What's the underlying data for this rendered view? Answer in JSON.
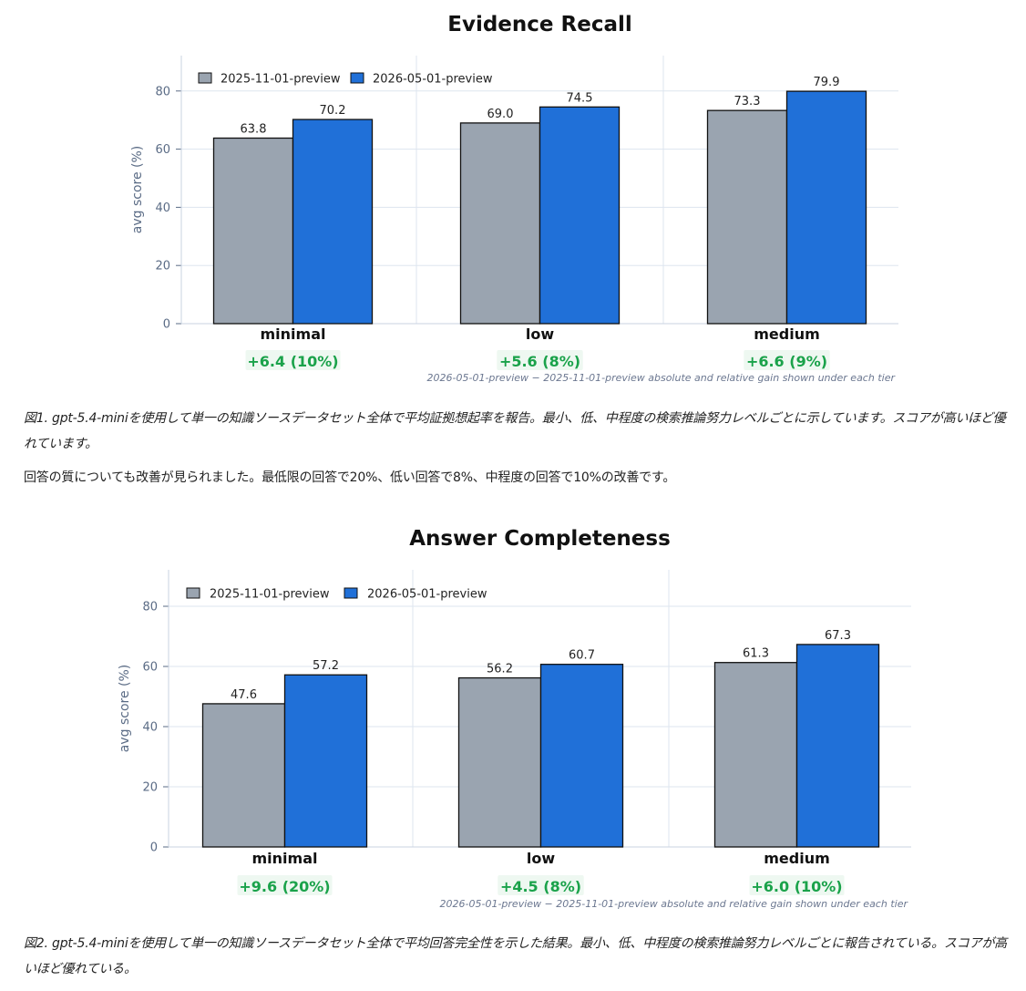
{
  "colors": {
    "baseline": "#9aa4b0",
    "improved": "#2070d8",
    "gain": "#1aa24a",
    "gain_bg": "#eef8f1",
    "axis": "#5a6b85",
    "grid": "#dde5ef"
  },
  "chart_data": [
    {
      "type": "bar",
      "title": "Evidence Recall",
      "ylabel": "avg score (%)",
      "xlabel": "",
      "categories": [
        "minimal",
        "low",
        "medium"
      ],
      "series": [
        {
          "name": "2025-11-01-preview",
          "values": [
            63.8,
            69.0,
            73.3
          ]
        },
        {
          "name": "2026-05-01-preview",
          "values": [
            70.2,
            74.5,
            79.9
          ]
        }
      ],
      "value_labels": [
        [
          "63.8",
          "69.0",
          "73.3"
        ],
        [
          "70.2",
          "74.5",
          "79.9"
        ]
      ],
      "gains": [
        "+6.4 (10%)",
        "+5.6 (8%)",
        "+6.6 (9%)"
      ],
      "yticks": [
        0,
        20,
        40,
        60,
        80
      ],
      "ylim": [
        0,
        92
      ],
      "grid": true,
      "legend": "top-left",
      "note": "2026-05-01-preview − 2025-11-01-preview absolute and relative gain shown under each tier"
    },
    {
      "type": "bar",
      "title": "Answer Completeness",
      "ylabel": "avg score (%)",
      "xlabel": "",
      "categories": [
        "minimal",
        "low",
        "medium"
      ],
      "series": [
        {
          "name": "2025-11-01-preview",
          "values": [
            47.6,
            56.2,
            61.3
          ]
        },
        {
          "name": "2026-05-01-preview",
          "values": [
            57.2,
            60.7,
            67.3
          ]
        }
      ],
      "value_labels": [
        [
          "47.6",
          "56.2",
          "61.3"
        ],
        [
          "57.2",
          "60.7",
          "67.3"
        ]
      ],
      "gains": [
        "+9.6 (20%)",
        "+4.5 (8%)",
        "+6.0 (10%)"
      ],
      "yticks": [
        0,
        20,
        40,
        60,
        80
      ],
      "ylim": [
        0,
        92
      ],
      "grid": true,
      "legend": "top-left",
      "note": "2026-05-01-preview − 2025-11-01-preview absolute and relative gain shown under each tier"
    }
  ],
  "text": {
    "caption1": "図1. gpt-5.4-miniを使用して単一の知識ソースデータセット全体で平均証拠想起率を報告。最小、低、中程度の検索推論努力レベルごとに示しています。スコアが高いほど優れています。",
    "paragraph": "回答の質についても改善が見られました。最低限の回答で20%、低い回答で8%、中程度の回答で10%の改善です。",
    "caption2": "図2. gpt-5.4-miniを使用して単一の知識ソースデータセット全体で平均回答完全性を示した結果。最小、低、中程度の検索推論努力レベルごとに報告されている。スコアが高いほど優れている。"
  }
}
